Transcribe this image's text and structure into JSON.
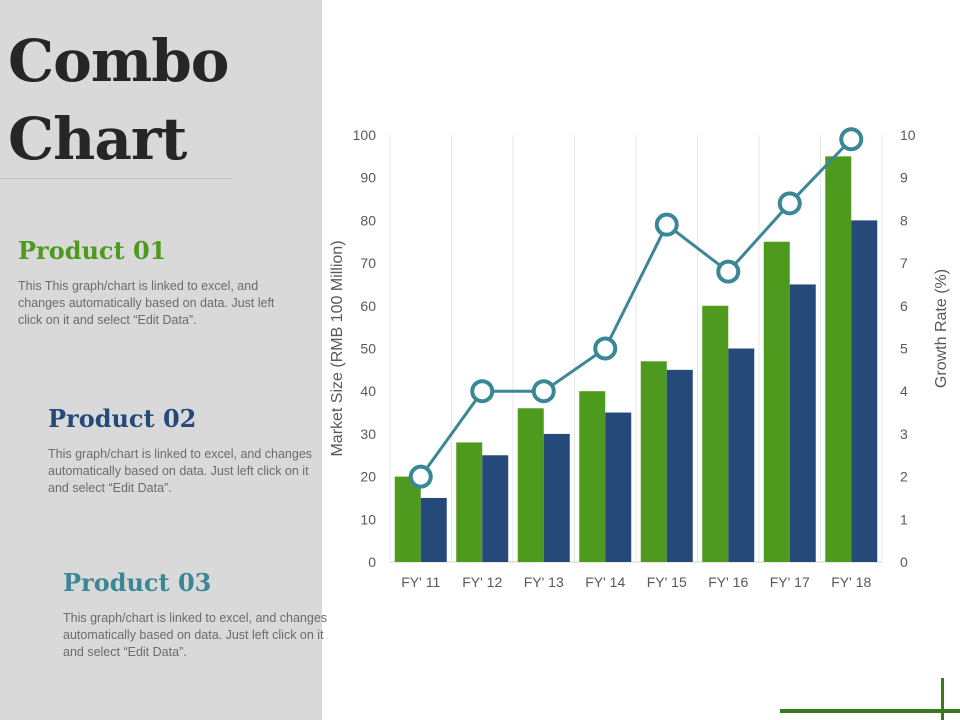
{
  "title_lines": [
    "Combo",
    "Chart"
  ],
  "products": [
    {
      "heading": "Product 01",
      "text": "This This graph/chart is linked to excel, and changes automatically based on data. Just left click on it and select “Edit Data”."
    },
    {
      "heading": "Product 02",
      "text": "This graph/chart is linked to excel, and changes automatically based on data. Just left click on it and select “Edit Data”."
    },
    {
      "heading": "Product 03",
      "text": "This graph/chart is linked to excel, and changes automatically based on data. Just left click on it and select “Edit Data”."
    }
  ],
  "colors": {
    "green": "#4e9a1e",
    "navy": "#254a7a",
    "teal": "#3a8796",
    "sidebar": "#d9d9d9"
  },
  "chart_data": {
    "type": "bar",
    "categories": [
      "FY' 11",
      "FY' 12",
      "FY' 13",
      "FY' 14",
      "FY' 15",
      "FY' 16",
      "FY' 17",
      "FY' 18"
    ],
    "series": [
      {
        "type": "bar",
        "axis": "left",
        "color": "#4e9a1e",
        "values": [
          20,
          28,
          36,
          40,
          47,
          60,
          75,
          95
        ]
      },
      {
        "type": "bar",
        "axis": "left",
        "color": "#254a7a",
        "values": [
          15,
          25,
          30,
          35,
          45,
          50,
          65,
          80
        ]
      },
      {
        "type": "line",
        "axis": "right",
        "color": "#3a8796",
        "values": [
          2,
          4,
          4,
          5,
          7.9,
          6.8,
          8.4,
          9.9
        ]
      }
    ],
    "ylabel": "Market Size (RMB 100 Million)",
    "ylabel_right": "Growth Rate (%)",
    "ylim": [
      0,
      100
    ],
    "ylim_right": [
      0,
      10
    ],
    "yticks": [
      "0",
      "10",
      "20",
      "30",
      "40",
      "50",
      "60",
      "70",
      "80",
      "90",
      "100"
    ],
    "yticks_right": [
      "0",
      "1",
      "2",
      "3",
      "4",
      "5",
      "6",
      "7",
      "8",
      "9",
      "10"
    ],
    "grid": "vertical",
    "legend": "none"
  }
}
